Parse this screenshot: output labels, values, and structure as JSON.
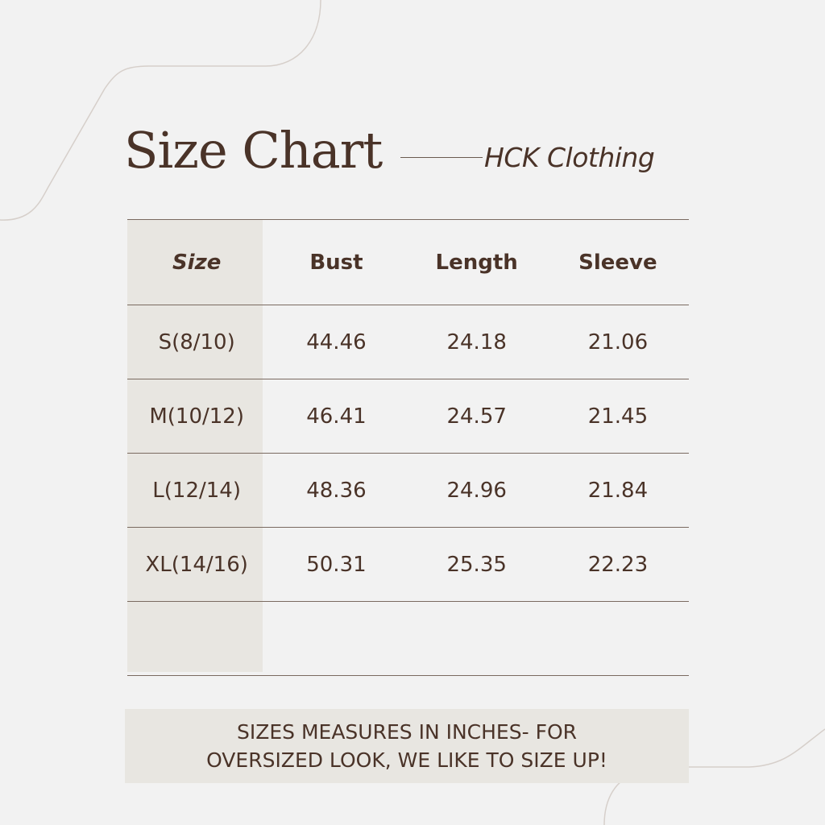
{
  "title": "Size Chart",
  "brand": "HCK Clothing",
  "colors": {
    "background": "#f2f2f2",
    "text": "#4a3328",
    "shade": "#e8e6e1"
  },
  "table": {
    "headers": [
      "Size",
      "Bust",
      "Length",
      "Sleeve"
    ],
    "rows": [
      [
        "S(8/10)",
        "44.46",
        "24.18",
        "21.06"
      ],
      [
        "M(10/12)",
        "46.41",
        "24.57",
        "21.45"
      ],
      [
        "L(12/14)",
        "48.36",
        "24.96",
        "21.84"
      ],
      [
        "XL(14/16)",
        "50.31",
        "25.35",
        "22.23"
      ],
      [
        "",
        "",
        "",
        ""
      ]
    ]
  },
  "note": {
    "line1": "SIZES MEASURES IN INCHES- FOR",
    "line2": "OVERSIZED LOOK, WE LIKE TO SIZE UP!"
  }
}
